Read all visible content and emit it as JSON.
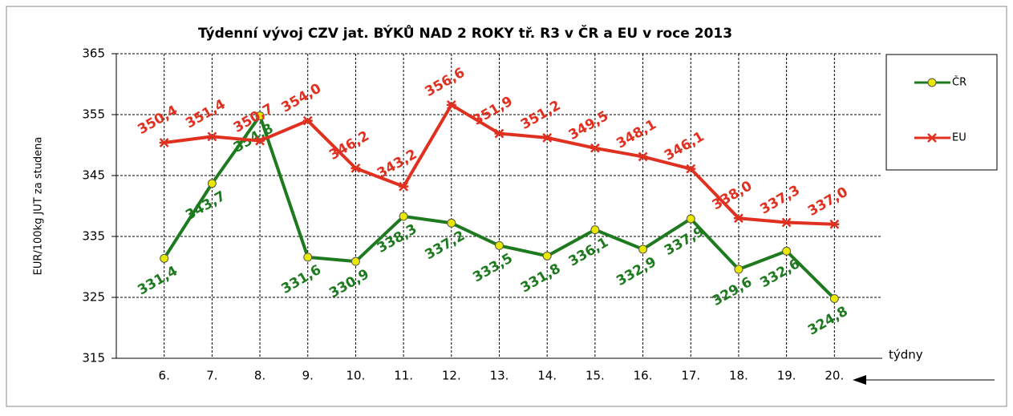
{
  "chart_data": {
    "type": "line",
    "title": "Týdenní vývoj CZV jat. BÝKŮ NAD 2 ROKY tř. R3  v ČR a EU v roce 2013",
    "y_label": "EUR/100kg  JUT za studena",
    "x_label": "týdny",
    "categories": [
      "6.",
      "7.",
      "8.",
      "9.",
      "10.",
      "11.",
      "12.",
      "13.",
      "14.",
      "15.",
      "16.",
      "17.",
      "18.",
      "19.",
      "20."
    ],
    "series": [
      {
        "name": "ČR",
        "color": "#1e7a1e",
        "marker_color": "#e8e800",
        "values": [
          331.4,
          343.7,
          354.8,
          331.6,
          330.9,
          338.3,
          337.2,
          333.5,
          331.8,
          336.1,
          332.9,
          337.9,
          329.6,
          332.6,
          324.8
        ],
        "value_labels": [
          "331,4",
          "343,7",
          "354,8",
          "331,6",
          "330,9",
          "338,3",
          "337,2",
          "333,5",
          "331,8",
          "336,1",
          "332,9",
          "337,9",
          "329,6",
          "332,6",
          "324,8"
        ]
      },
      {
        "name": "EU",
        "color": "#e03020",
        "values": [
          350.4,
          351.4,
          350.7,
          354.0,
          346.2,
          343.2,
          356.6,
          351.9,
          351.2,
          349.5,
          348.1,
          346.1,
          338.0,
          337.3,
          337.0
        ],
        "value_labels": [
          "350,4",
          "351,4",
          "350,7",
          "354,0",
          "346,2",
          "343,2",
          "356,6",
          "351,9",
          "351,2",
          "349,5",
          "348,1",
          "346,1",
          "338,0",
          "337,3",
          "337,0"
        ]
      }
    ],
    "ylim": [
      315,
      365
    ],
    "yticks": [
      315,
      325,
      335,
      345,
      355,
      365
    ],
    "grid": true
  }
}
